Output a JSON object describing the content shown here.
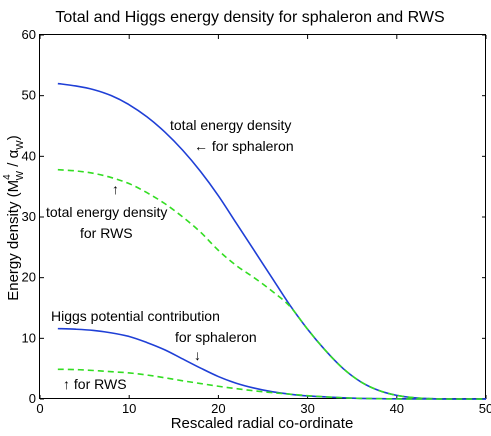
{
  "chart_data": {
    "type": "line",
    "title": "Total and Higgs energy density for sphaleron and RWS",
    "xlabel": "Rescaled radial co-ordinate",
    "ylabel": {
      "prefix": "Energy density (M",
      "sup": "4",
      "sub1": "W",
      "mid": " / α",
      "sub2": "W",
      "suffix": ")"
    },
    "xlim": [
      0,
      50
    ],
    "ylim": [
      0,
      60
    ],
    "xticks": [
      "0",
      "10",
      "20",
      "30",
      "40",
      "50"
    ],
    "yticks": [
      "0",
      "10",
      "20",
      "30",
      "40",
      "50",
      "60"
    ],
    "grid": false,
    "series": [
      {
        "key": "total_sphaleron",
        "color": "#1f3fd6",
        "dash": "solid",
        "x": [
          2,
          4,
          6,
          8,
          10,
          12,
          14,
          16,
          18,
          20,
          22,
          24,
          26,
          28,
          30,
          32,
          34,
          36,
          38,
          40,
          42,
          44,
          46,
          48,
          50
        ],
        "y": [
          52,
          51.6,
          51,
          50,
          48.5,
          46.5,
          44,
          41,
          37.5,
          33.5,
          29,
          24.5,
          20,
          15.5,
          11.5,
          8,
          5,
          2.8,
          1.4,
          0.6,
          0.2,
          0.05,
          0,
          0,
          0
        ]
      },
      {
        "key": "total_rws",
        "color": "#33dd22",
        "dash": "dashed",
        "x": [
          2,
          4,
          6,
          8,
          10,
          12,
          14,
          16,
          18,
          20,
          22,
          24,
          26,
          28,
          30,
          32,
          34,
          36,
          38,
          40,
          42,
          44,
          46,
          48,
          50
        ],
        "y": [
          37.8,
          37.6,
          37.2,
          36.5,
          35.5,
          34,
          32.2,
          30,
          27.5,
          24.5,
          22,
          20,
          17.8,
          15.3,
          11.5,
          8,
          5,
          2.8,
          1.4,
          0.6,
          0.2,
          0.05,
          0,
          0,
          0
        ]
      },
      {
        "key": "higgs_sphaleron",
        "color": "#1f3fd6",
        "dash": "solid",
        "x": [
          2,
          4,
          6,
          8,
          10,
          12,
          14,
          16,
          18,
          20,
          22,
          24,
          26,
          28,
          30,
          32,
          34,
          36,
          38,
          40,
          42,
          44,
          46,
          48,
          50
        ],
        "y": [
          11.6,
          11.5,
          11.3,
          10.9,
          10.3,
          9.3,
          8.1,
          6.6,
          5.1,
          3.7,
          2.6,
          1.8,
          1.2,
          0.8,
          0.5,
          0.35,
          0.2,
          0.1,
          0.05,
          0.02,
          0,
          0,
          0,
          0,
          0
        ]
      },
      {
        "key": "higgs_rws",
        "color": "#33dd22",
        "dash": "dashed",
        "x": [
          2,
          4,
          6,
          8,
          10,
          12,
          14,
          16,
          18,
          20,
          22,
          24,
          26,
          28,
          30,
          32,
          34,
          36,
          38,
          40,
          42,
          44,
          46,
          48,
          50
        ],
        "y": [
          4.9,
          4.85,
          4.7,
          4.5,
          4.3,
          3.95,
          3.5,
          3,
          2.55,
          2.1,
          1.7,
          1.35,
          1.05,
          0.8,
          0.55,
          0.35,
          0.2,
          0.1,
          0.05,
          0.02,
          0,
          0,
          0,
          0,
          0
        ]
      }
    ],
    "annotations": {
      "total_sph_1": "total energy density",
      "total_sph_2": "← for sphaleron",
      "up_arrow_1": "↑",
      "total_rws_1": "total energy density",
      "total_rws_2": "for RWS",
      "higgs_1": "Higgs potential contribution",
      "higgs_sph": "for sphaleron",
      "down_arrow": "↓",
      "higgs_rws": "↑ for RWS"
    }
  }
}
